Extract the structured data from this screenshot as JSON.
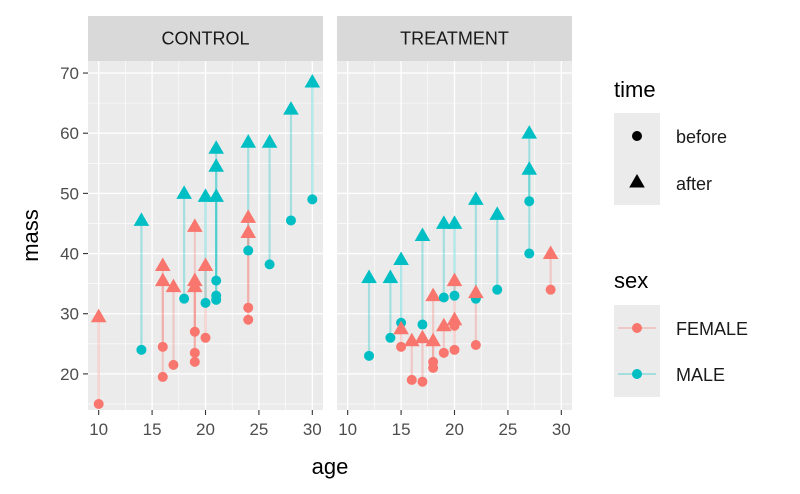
{
  "chart_data": {
    "type": "scatter",
    "facets": [
      "CONTROL",
      "TREATMENT"
    ],
    "xlabel": "age",
    "ylabel": "mass",
    "xlim": [
      9,
      31
    ],
    "ylim": [
      14,
      72
    ],
    "x_ticks": [
      10,
      15,
      20,
      25,
      30
    ],
    "y_ticks": [
      20,
      30,
      40,
      50,
      60,
      70
    ],
    "grid": true,
    "legend": {
      "time": {
        "title": "time",
        "entries": [
          {
            "label": "before",
            "shape": "circle"
          },
          {
            "label": "after",
            "shape": "triangle"
          }
        ]
      },
      "sex": {
        "title": "sex",
        "entries": [
          {
            "label": "FEMALE",
            "color": "#F8766D"
          },
          {
            "label": "MALE",
            "color": "#00BFC4"
          }
        ]
      },
      "placement": "right"
    },
    "colors": {
      "FEMALE": "#F8766D",
      "MALE": "#00BFC4",
      "panel_bg": "#EBEBEB",
      "strip_bg": "#D9D9D9"
    },
    "subjects": [
      {
        "facet": "CONTROL",
        "sex": "FEMALE",
        "age": 10,
        "before": 15,
        "after": 29.5
      },
      {
        "facet": "CONTROL",
        "sex": "MALE",
        "age": 14,
        "before": 24,
        "after": 45.5
      },
      {
        "facet": "CONTROL",
        "sex": "FEMALE",
        "age": 16,
        "before": 19.5,
        "after": 38
      },
      {
        "facet": "CONTROL",
        "sex": "FEMALE",
        "age": 16,
        "before": 24.5,
        "after": 35.5
      },
      {
        "facet": "CONTROL",
        "sex": "FEMALE",
        "age": 17,
        "before": 21.5,
        "after": 34.5
      },
      {
        "facet": "CONTROL",
        "sex": "MALE",
        "age": 18,
        "before": 32.5,
        "after": 50
      },
      {
        "facet": "CONTROL",
        "sex": "FEMALE",
        "age": 19,
        "before": 27,
        "after": 44.5
      },
      {
        "facet": "CONTROL",
        "sex": "FEMALE",
        "age": 19,
        "before": 23.5,
        "after": 35.5
      },
      {
        "facet": "CONTROL",
        "sex": "FEMALE",
        "age": 19,
        "before": 22,
        "after": 34.5
      },
      {
        "facet": "CONTROL",
        "sex": "FEMALE",
        "age": 20,
        "before": 26,
        "after": 38
      },
      {
        "facet": "CONTROL",
        "sex": "MALE",
        "age": 20,
        "before": 31.8,
        "after": 49.5
      },
      {
        "facet": "CONTROL",
        "sex": "MALE",
        "age": 21,
        "before": 35.5,
        "after": 57.5
      },
      {
        "facet": "CONTROL",
        "sex": "MALE",
        "age": 21,
        "before": 33,
        "after": 54.5
      },
      {
        "facet": "CONTROL",
        "sex": "MALE",
        "age": 21,
        "before": 32.3,
        "after": 49.5
      },
      {
        "facet": "CONTROL",
        "sex": "MALE",
        "age": 24,
        "before": 40.5,
        "after": 58.5
      },
      {
        "facet": "CONTROL",
        "sex": "FEMALE",
        "age": 24,
        "before": 31,
        "after": 46
      },
      {
        "facet": "CONTROL",
        "sex": "FEMALE",
        "age": 24,
        "before": 29,
        "after": 43.5
      },
      {
        "facet": "CONTROL",
        "sex": "MALE",
        "age": 26,
        "before": 38.2,
        "after": 58.5
      },
      {
        "facet": "CONTROL",
        "sex": "MALE",
        "age": 28,
        "before": 45.5,
        "after": 64
      },
      {
        "facet": "CONTROL",
        "sex": "MALE",
        "age": 30,
        "before": 49,
        "after": 68.5
      },
      {
        "facet": "TREATMENT",
        "sex": "MALE",
        "age": 12,
        "before": 23,
        "after": 36
      },
      {
        "facet": "TREATMENT",
        "sex": "MALE",
        "age": 14,
        "before": 26,
        "after": 36
      },
      {
        "facet": "TREATMENT",
        "sex": "MALE",
        "age": 15,
        "before": 28.5,
        "after": 39
      },
      {
        "facet": "TREATMENT",
        "sex": "FEMALE",
        "age": 15,
        "before": 24.5,
        "after": 27.5
      },
      {
        "facet": "TREATMENT",
        "sex": "FEMALE",
        "age": 16,
        "before": 19,
        "after": 25.5
      },
      {
        "facet": "TREATMENT",
        "sex": "MALE",
        "age": 17,
        "before": 28.2,
        "after": 43
      },
      {
        "facet": "TREATMENT",
        "sex": "FEMALE",
        "age": 17,
        "before": 18.7,
        "after": 26
      },
      {
        "facet": "TREATMENT",
        "sex": "FEMALE",
        "age": 18,
        "before": 22,
        "after": 33
      },
      {
        "facet": "TREATMENT",
        "sex": "FEMALE",
        "age": 18,
        "before": 21,
        "after": 25.5
      },
      {
        "facet": "TREATMENT",
        "sex": "MALE",
        "age": 19,
        "before": 32.7,
        "after": 45
      },
      {
        "facet": "TREATMENT",
        "sex": "FEMALE",
        "age": 19,
        "before": 23.5,
        "after": 28
      },
      {
        "facet": "TREATMENT",
        "sex": "MALE",
        "age": 20,
        "before": 33,
        "after": 45
      },
      {
        "facet": "TREATMENT",
        "sex": "FEMALE",
        "age": 20,
        "before": 28,
        "after": 35.5
      },
      {
        "facet": "TREATMENT",
        "sex": "FEMALE",
        "age": 20,
        "before": 24,
        "after": 29
      },
      {
        "facet": "TREATMENT",
        "sex": "MALE",
        "age": 22,
        "before": 32.5,
        "after": 49
      },
      {
        "facet": "TREATMENT",
        "sex": "FEMALE",
        "age": 22,
        "before": 24.8,
        "after": 33.5
      },
      {
        "facet": "TREATMENT",
        "sex": "MALE",
        "age": 24,
        "before": 34,
        "after": 46.5
      },
      {
        "facet": "TREATMENT",
        "sex": "MALE",
        "age": 27,
        "before": 48.7,
        "after": 60
      },
      {
        "facet": "TREATMENT",
        "sex": "MALE",
        "age": 27,
        "before": 40,
        "after": 54
      },
      {
        "facet": "TREATMENT",
        "sex": "FEMALE",
        "age": 29,
        "before": 34,
        "after": 40
      }
    ]
  }
}
